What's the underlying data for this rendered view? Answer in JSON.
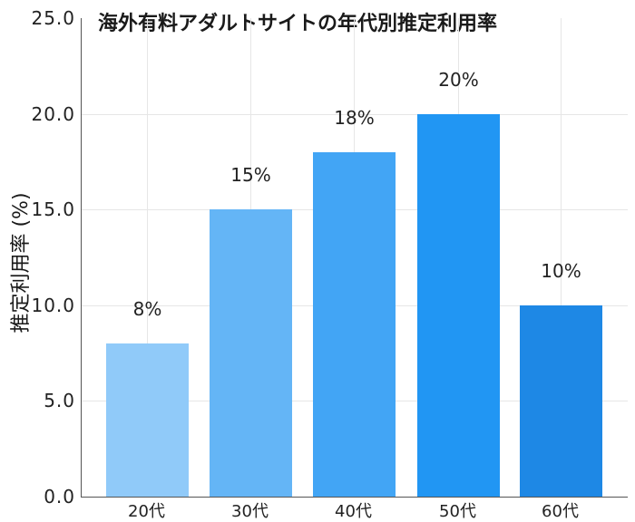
{
  "chart_data": {
    "type": "bar",
    "title": "海外有料アダルトサイトの年代別推定利用率",
    "xlabel": "",
    "ylabel": "推定利用率 (%)",
    "categories": [
      "20代",
      "30代",
      "40代",
      "50代",
      "60代"
    ],
    "values": [
      8,
      15,
      18,
      20,
      10
    ],
    "value_labels": [
      "8%",
      "15%",
      "18%",
      "20%",
      "10%"
    ],
    "colors": [
      "#90CAF9",
      "#64B5F6",
      "#42A5F5",
      "#2196F3",
      "#1E88E5"
    ],
    "ylim": [
      0,
      25
    ],
    "yticks": [
      "0.0",
      "5.0",
      "10.0",
      "15.0",
      "20.0",
      "25.0"
    ],
    "grid": true,
    "legend": null
  }
}
